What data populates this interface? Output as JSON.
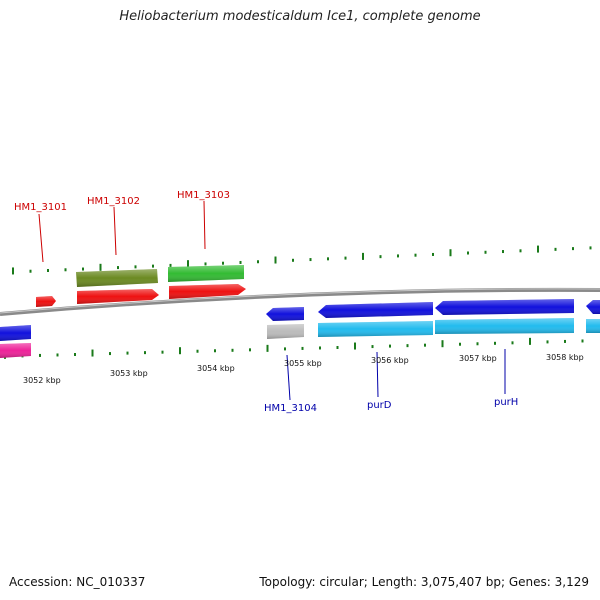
{
  "title": "Heliobacterium modesticaldum Ice1, complete genome",
  "footer": {
    "accession": "Accession: NC_010337",
    "topology": "Topology: circular; Length: 3,075,407 bp; Genes: 3,129"
  },
  "colors": {
    "backbone": "#8a8a8a",
    "tick": "#1a7a1a",
    "red": "#ee1111",
    "olive": "#6b8a22",
    "green": "#33bb33",
    "blue": "#1111dd",
    "cyan": "#22bbee",
    "magenta": "#ee2299",
    "gray": "#bbbbbb",
    "label_top": "#cc0000",
    "label_bottom": "#0000aa"
  },
  "scale_labels": [
    "3052 kbp",
    "3053 kbp",
    "3054 kbp",
    "3055 kbp",
    "3056 kbp",
    "3057 kbp",
    "3058 kbp"
  ],
  "gene_labels_top": [
    "HM1_3101",
    "HM1_3102",
    "HM1_3103"
  ],
  "gene_labels_bottom": [
    "HM1_3104",
    "purD",
    "purH"
  ]
}
